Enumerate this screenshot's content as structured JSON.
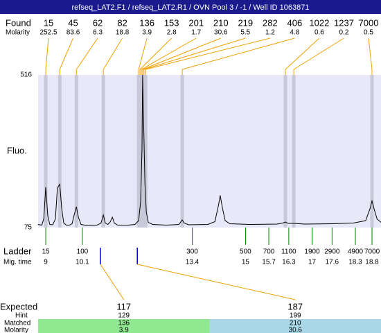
{
  "chart_data": {
    "type": "electropherogram",
    "title": "refseq_LAT2.F1 / refseq_LAT2.R1 / OVN Pool 3 / -1 / Well ID 1063871",
    "found_label": "Found",
    "molarity_label": "Molarity",
    "y_label": "Fluo.",
    "ylim": [
      75,
      516
    ],
    "yticks": [
      75,
      516
    ],
    "xlim": [
      8.77,
      19.07
    ],
    "trace": {
      "color": "#000000",
      "x": [
        8.77,
        8.88,
        8.94,
        9.0,
        9.06,
        9.12,
        9.21,
        9.29,
        9.35,
        9.42,
        9.48,
        9.54,
        9.62,
        9.71,
        9.79,
        9.85,
        9.92,
        9.98,
        10.06,
        10.23,
        10.54,
        10.66,
        10.73,
        10.79,
        10.87,
        10.94,
        11.0,
        11.06,
        11.16,
        11.48,
        11.68,
        11.79,
        11.85,
        11.89,
        11.91,
        11.93,
        11.98,
        12.02,
        12.08,
        12.21,
        12.62,
        13.0,
        13.06,
        13.1,
        13.16,
        13.29,
        13.87,
        14.08,
        14.19,
        14.24,
        14.31,
        14.39,
        14.53,
        15.12,
        15.95,
        16.12,
        16.2,
        16.28,
        16.45,
        16.78,
        17.61,
        18.24,
        18.61,
        18.74,
        18.8,
        18.86,
        18.95,
        19.07
      ],
      "values": [
        84,
        82,
        100,
        192,
        110,
        84,
        83,
        100,
        190,
        200,
        130,
        88,
        82,
        82,
        86,
        110,
        135,
        105,
        84,
        81,
        82,
        88,
        111,
        88,
        84,
        92,
        105,
        88,
        82,
        82,
        84,
        95,
        150,
        300,
        516,
        420,
        200,
        120,
        90,
        84,
        82,
        84,
        92,
        97,
        88,
        83,
        84,
        92,
        140,
        168,
        130,
        95,
        86,
        84,
        85,
        88,
        91,
        87,
        87,
        85,
        86,
        88,
        95,
        130,
        152,
        130,
        100,
        90
      ]
    },
    "found": {
      "leader_color": "#f0a000",
      "band_color": "#c8c8d8",
      "sizes": [
        15,
        45,
        62,
        82,
        136,
        153,
        201,
        210,
        219,
        282,
        406,
        1022,
        1237,
        7000
      ],
      "molarity": [
        252.5,
        83.6,
        6.3,
        18.8,
        3.9,
        2.8,
        1.7,
        30.6,
        5.5,
        1.2,
        4.8,
        0.6,
        0.2,
        0.5
      ],
      "times": [
        9.0,
        9.42,
        9.92,
        10.73,
        11.79,
        11.83,
        11.87,
        11.91,
        11.95,
        12.0,
        13.1,
        16.2,
        16.45,
        18.8
      ]
    },
    "ladder": {
      "label": "Ladder",
      "time_label": "Mig. time",
      "color": "#008000",
      "sizes": [
        15,
        100,
        300,
        500,
        700,
        1100,
        1900,
        2900,
        4900,
        7000
      ],
      "times": [
        9,
        10.1,
        13.4,
        15,
        15.7,
        16.3,
        17,
        17.6,
        18.3,
        18.8
      ]
    },
    "expected": {
      "row_labels": [
        "Expected",
        "Hint",
        "Matched",
        "Molarity"
      ],
      "marker_color": "#0000c0",
      "link_color": "#f0a000",
      "fragments": [
        {
          "expected": 117,
          "hint": 129,
          "matched": 136,
          "molarity": 3.9,
          "time": 10.64,
          "color": "#90e890"
        },
        {
          "expected": 187,
          "hint": 199,
          "matched": 210,
          "molarity": 30.6,
          "time": 11.75,
          "color": "#a8d8e8"
        }
      ]
    }
  }
}
